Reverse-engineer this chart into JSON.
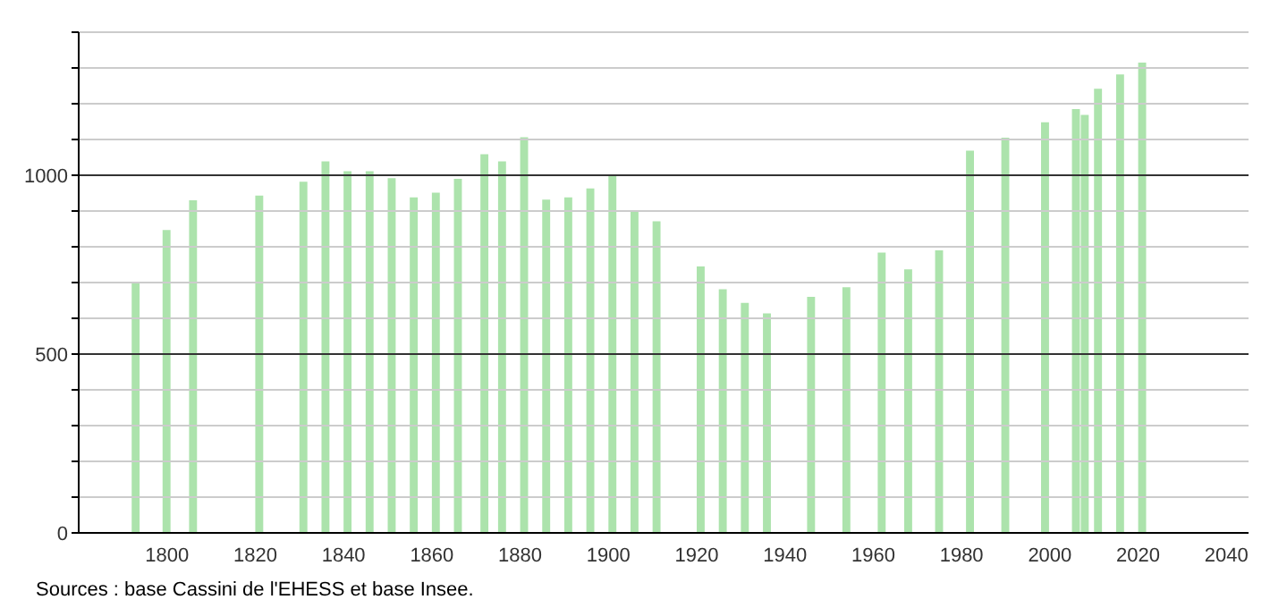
{
  "chart_data": {
    "type": "bar",
    "color": "#ace3ac",
    "x": [
      1793,
      1800,
      1806,
      1821,
      1831,
      1836,
      1841,
      1846,
      1851,
      1856,
      1861,
      1866,
      1872,
      1876,
      1881,
      1886,
      1891,
      1896,
      1901,
      1906,
      1911,
      1921,
      1926,
      1931,
      1936,
      1946,
      1954,
      1962,
      1968,
      1975,
      1982,
      1990,
      1999,
      2006,
      2008,
      2011,
      2016,
      2021
    ],
    "values": [
      700,
      847,
      930,
      943,
      982,
      1039,
      1011,
      1011,
      992,
      938,
      951,
      990,
      1059,
      1039,
      1106,
      932,
      938,
      963,
      1000,
      898,
      871,
      745,
      681,
      643,
      614,
      660,
      687,
      784,
      737,
      790,
      1069,
      1105,
      1148,
      1185,
      1169,
      1242,
      1282,
      1315
    ],
    "xlim": [
      1780,
      2045
    ],
    "xticks": [
      1800,
      1820,
      1840,
      1860,
      1880,
      1900,
      1920,
      1940,
      1960,
      1980,
      2000,
      2020,
      2040
    ],
    "ylim": [
      0,
      1400
    ],
    "yticks": [
      0,
      {
        "value": 100,
        "label": null
      },
      {
        "value": 200,
        "label": null
      },
      {
        "value": 300,
        "label": null
      },
      {
        "value": 400,
        "label": null
      },
      500,
      {
        "value": 600,
        "label": null
      },
      {
        "value": 700,
        "label": null
      },
      {
        "value": 800,
        "label": null
      },
      {
        "value": 900,
        "label": null
      },
      1000,
      {
        "value": 1100,
        "label": null
      },
      {
        "value": 1200,
        "label": null
      },
      {
        "value": 1300,
        "label": null
      },
      {
        "value": 1400,
        "label": null
      }
    ],
    "grid": "y",
    "annotations": [
      "Sources : base Cassini de l'EHESS et base Insee."
    ]
  }
}
